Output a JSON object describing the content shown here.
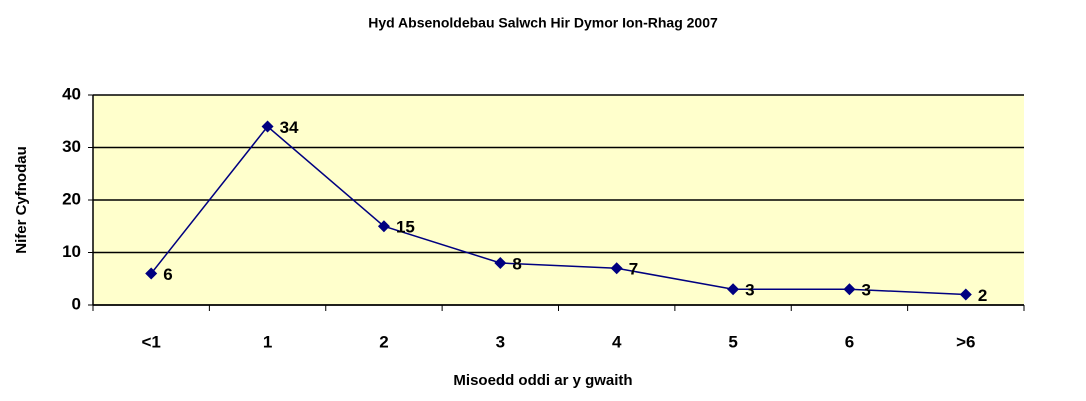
{
  "chart_data": {
    "type": "line",
    "title": "Hyd Absenoldebau Salwch Hir Dymor Ion-Rhag 2007",
    "x_label": "Misoedd oddi ar y gwaith",
    "y_label": "Nifer Cyfnodau",
    "categories": [
      "<1",
      "1",
      "2",
      "3",
      "4",
      "5",
      "6",
      ">6"
    ],
    "series": [
      {
        "name": "Nifer Cyfnodau",
        "color": "#000080",
        "values": [
          6,
          34,
          15,
          8,
          7,
          3,
          3,
          2
        ]
      }
    ],
    "ylim": [
      0,
      40
    ],
    "yticks": [
      0,
      10,
      20,
      30,
      40
    ],
    "grid": true
  }
}
